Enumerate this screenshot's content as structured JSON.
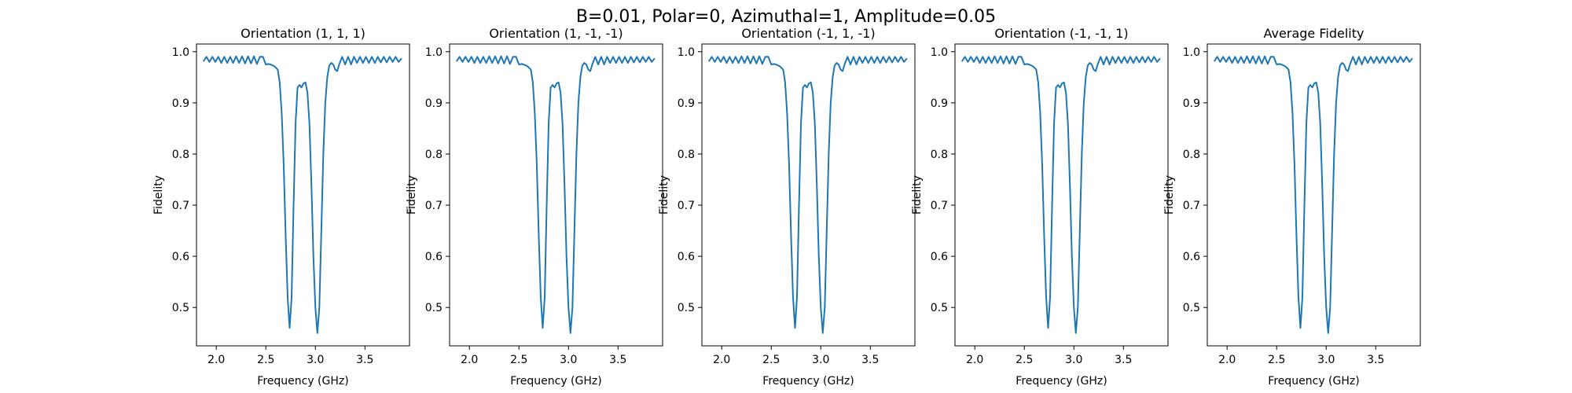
{
  "figure": {
    "suptitle": "B=0.01, Polar=0, Azimuthal=1, Amplitude=0.05"
  },
  "colors": {
    "line": "#1f77b4",
    "axes": "#000000"
  },
  "chart_data": [
    {
      "type": "line",
      "title": "Orientation (1, 1, 1)",
      "xlabel": "Frequency (GHz)",
      "ylabel": "Fidelity",
      "xlim": [
        1.8,
        3.95
      ],
      "ylim": [
        0.425,
        1.015
      ],
      "xticks": [
        "2.0",
        "2.5",
        "3.0",
        "3.5"
      ],
      "yticks": [
        "0.5",
        "0.6",
        "0.7",
        "0.8",
        "0.9",
        "1.0"
      ],
      "grid": false,
      "series": [
        {
          "x": [
            1.87,
            1.9,
            1.93,
            1.96,
            1.99,
            2.02,
            2.05,
            2.08,
            2.11,
            2.14,
            2.17,
            2.2,
            2.23,
            2.26,
            2.29,
            2.32,
            2.35,
            2.38,
            2.41,
            2.44,
            2.47,
            2.5,
            2.53,
            2.56,
            2.59,
            2.62,
            2.64,
            2.66,
            2.68,
            2.7,
            2.72,
            2.74,
            2.76,
            2.78,
            2.8,
            2.82,
            2.84,
            2.86,
            2.88,
            2.9,
            2.92,
            2.94,
            2.96,
            2.98,
            3.0,
            3.02,
            3.04,
            3.06,
            3.08,
            3.1,
            3.12,
            3.14,
            3.16,
            3.18,
            3.2,
            3.22,
            3.24,
            3.27,
            3.3,
            3.33,
            3.36,
            3.39,
            3.42,
            3.45,
            3.48,
            3.51,
            3.54,
            3.57,
            3.6,
            3.63,
            3.66,
            3.69,
            3.72,
            3.75,
            3.78,
            3.81,
            3.84,
            3.87
          ],
          "y": [
            0.981,
            0.99,
            0.98,
            0.99,
            0.98,
            0.99,
            0.978,
            0.99,
            0.978,
            0.99,
            0.978,
            0.991,
            0.978,
            0.991,
            0.977,
            0.991,
            0.977,
            0.991,
            0.976,
            0.99,
            0.99,
            0.975,
            0.976,
            0.974,
            0.971,
            0.965,
            0.94,
            0.88,
            0.78,
            0.64,
            0.52,
            0.46,
            0.52,
            0.7,
            0.86,
            0.93,
            0.935,
            0.93,
            0.938,
            0.94,
            0.92,
            0.86,
            0.74,
            0.6,
            0.5,
            0.45,
            0.5,
            0.65,
            0.8,
            0.9,
            0.95,
            0.973,
            0.978,
            0.975,
            0.965,
            0.962,
            0.975,
            0.99,
            0.975,
            0.99,
            0.975,
            0.99,
            0.978,
            0.99,
            0.978,
            0.99,
            0.978,
            0.99,
            0.978,
            0.99,
            0.979,
            0.99,
            0.979,
            0.99,
            0.98,
            0.99,
            0.98,
            0.987
          ]
        }
      ]
    },
    {
      "type": "line",
      "title": "Orientation (1, -1, -1)",
      "xlabel": "Frequency (GHz)",
      "ylabel": "Fidelity",
      "xlim": [
        1.8,
        3.95
      ],
      "ylim": [
        0.425,
        1.015
      ],
      "xticks": [
        "2.0",
        "2.5",
        "3.0",
        "3.5"
      ],
      "yticks": [
        "0.5",
        "0.6",
        "0.7",
        "0.8",
        "0.9",
        "1.0"
      ],
      "grid": false,
      "series": [
        {
          "x": [
            1.87,
            1.9,
            1.93,
            1.96,
            1.99,
            2.02,
            2.05,
            2.08,
            2.11,
            2.14,
            2.17,
            2.2,
            2.23,
            2.26,
            2.29,
            2.32,
            2.35,
            2.38,
            2.41,
            2.44,
            2.47,
            2.5,
            2.53,
            2.56,
            2.59,
            2.62,
            2.64,
            2.66,
            2.68,
            2.7,
            2.72,
            2.74,
            2.76,
            2.78,
            2.8,
            2.82,
            2.84,
            2.86,
            2.88,
            2.9,
            2.92,
            2.94,
            2.96,
            2.98,
            3.0,
            3.02,
            3.04,
            3.06,
            3.08,
            3.1,
            3.12,
            3.14,
            3.16,
            3.18,
            3.2,
            3.22,
            3.24,
            3.27,
            3.3,
            3.33,
            3.36,
            3.39,
            3.42,
            3.45,
            3.48,
            3.51,
            3.54,
            3.57,
            3.6,
            3.63,
            3.66,
            3.69,
            3.72,
            3.75,
            3.78,
            3.81,
            3.84,
            3.87
          ],
          "y": [
            0.981,
            0.99,
            0.98,
            0.99,
            0.98,
            0.99,
            0.978,
            0.99,
            0.978,
            0.99,
            0.978,
            0.991,
            0.978,
            0.991,
            0.977,
            0.991,
            0.977,
            0.991,
            0.976,
            0.99,
            0.99,
            0.975,
            0.976,
            0.974,
            0.971,
            0.965,
            0.94,
            0.88,
            0.78,
            0.64,
            0.52,
            0.46,
            0.52,
            0.7,
            0.86,
            0.93,
            0.935,
            0.93,
            0.938,
            0.94,
            0.92,
            0.86,
            0.74,
            0.6,
            0.5,
            0.45,
            0.5,
            0.65,
            0.8,
            0.9,
            0.95,
            0.973,
            0.978,
            0.975,
            0.965,
            0.962,
            0.975,
            0.99,
            0.975,
            0.99,
            0.975,
            0.99,
            0.978,
            0.99,
            0.978,
            0.99,
            0.978,
            0.99,
            0.978,
            0.99,
            0.979,
            0.99,
            0.979,
            0.99,
            0.98,
            0.99,
            0.98,
            0.987
          ]
        }
      ]
    },
    {
      "type": "line",
      "title": "Orientation (-1, 1, -1)",
      "xlabel": "Frequency (GHz)",
      "ylabel": "Fidelity",
      "xlim": [
        1.8,
        3.95
      ],
      "ylim": [
        0.425,
        1.015
      ],
      "xticks": [
        "2.0",
        "2.5",
        "3.0",
        "3.5"
      ],
      "yticks": [
        "0.5",
        "0.6",
        "0.7",
        "0.8",
        "0.9",
        "1.0"
      ],
      "grid": false,
      "series": [
        {
          "x": [
            1.87,
            1.9,
            1.93,
            1.96,
            1.99,
            2.02,
            2.05,
            2.08,
            2.11,
            2.14,
            2.17,
            2.2,
            2.23,
            2.26,
            2.29,
            2.32,
            2.35,
            2.38,
            2.41,
            2.44,
            2.47,
            2.5,
            2.53,
            2.56,
            2.59,
            2.62,
            2.64,
            2.66,
            2.68,
            2.7,
            2.72,
            2.74,
            2.76,
            2.78,
            2.8,
            2.82,
            2.84,
            2.86,
            2.88,
            2.9,
            2.92,
            2.94,
            2.96,
            2.98,
            3.0,
            3.02,
            3.04,
            3.06,
            3.08,
            3.1,
            3.12,
            3.14,
            3.16,
            3.18,
            3.2,
            3.22,
            3.24,
            3.27,
            3.3,
            3.33,
            3.36,
            3.39,
            3.42,
            3.45,
            3.48,
            3.51,
            3.54,
            3.57,
            3.6,
            3.63,
            3.66,
            3.69,
            3.72,
            3.75,
            3.78,
            3.81,
            3.84,
            3.87
          ],
          "y": [
            0.981,
            0.99,
            0.98,
            0.99,
            0.98,
            0.99,
            0.978,
            0.99,
            0.978,
            0.99,
            0.978,
            0.991,
            0.978,
            0.991,
            0.977,
            0.991,
            0.977,
            0.991,
            0.976,
            0.99,
            0.99,
            0.975,
            0.976,
            0.974,
            0.971,
            0.965,
            0.94,
            0.88,
            0.78,
            0.64,
            0.52,
            0.46,
            0.52,
            0.7,
            0.86,
            0.93,
            0.935,
            0.93,
            0.938,
            0.94,
            0.92,
            0.86,
            0.74,
            0.6,
            0.5,
            0.45,
            0.5,
            0.65,
            0.8,
            0.9,
            0.95,
            0.973,
            0.978,
            0.975,
            0.965,
            0.962,
            0.975,
            0.99,
            0.975,
            0.99,
            0.975,
            0.99,
            0.978,
            0.99,
            0.978,
            0.99,
            0.978,
            0.99,
            0.978,
            0.99,
            0.979,
            0.99,
            0.979,
            0.99,
            0.98,
            0.99,
            0.98,
            0.987
          ]
        }
      ]
    },
    {
      "type": "line",
      "title": "Orientation (-1, -1, 1)",
      "xlabel": "Frequency (GHz)",
      "ylabel": "Fidelity",
      "xlim": [
        1.8,
        3.95
      ],
      "ylim": [
        0.425,
        1.015
      ],
      "xticks": [
        "2.0",
        "2.5",
        "3.0",
        "3.5"
      ],
      "yticks": [
        "0.5",
        "0.6",
        "0.7",
        "0.8",
        "0.9",
        "1.0"
      ],
      "grid": false,
      "series": [
        {
          "x": [
            1.87,
            1.9,
            1.93,
            1.96,
            1.99,
            2.02,
            2.05,
            2.08,
            2.11,
            2.14,
            2.17,
            2.2,
            2.23,
            2.26,
            2.29,
            2.32,
            2.35,
            2.38,
            2.41,
            2.44,
            2.47,
            2.5,
            2.53,
            2.56,
            2.59,
            2.62,
            2.64,
            2.66,
            2.68,
            2.7,
            2.72,
            2.74,
            2.76,
            2.78,
            2.8,
            2.82,
            2.84,
            2.86,
            2.88,
            2.9,
            2.92,
            2.94,
            2.96,
            2.98,
            3.0,
            3.02,
            3.04,
            3.06,
            3.08,
            3.1,
            3.12,
            3.14,
            3.16,
            3.18,
            3.2,
            3.22,
            3.24,
            3.27,
            3.3,
            3.33,
            3.36,
            3.39,
            3.42,
            3.45,
            3.48,
            3.51,
            3.54,
            3.57,
            3.6,
            3.63,
            3.66,
            3.69,
            3.72,
            3.75,
            3.78,
            3.81,
            3.84,
            3.87
          ],
          "y": [
            0.981,
            0.99,
            0.98,
            0.99,
            0.98,
            0.99,
            0.978,
            0.99,
            0.978,
            0.99,
            0.978,
            0.991,
            0.978,
            0.991,
            0.977,
            0.991,
            0.977,
            0.991,
            0.976,
            0.99,
            0.99,
            0.975,
            0.976,
            0.974,
            0.971,
            0.965,
            0.94,
            0.88,
            0.78,
            0.64,
            0.52,
            0.46,
            0.52,
            0.7,
            0.86,
            0.93,
            0.935,
            0.93,
            0.938,
            0.94,
            0.92,
            0.86,
            0.74,
            0.6,
            0.5,
            0.45,
            0.5,
            0.65,
            0.8,
            0.9,
            0.95,
            0.973,
            0.978,
            0.975,
            0.965,
            0.962,
            0.975,
            0.99,
            0.975,
            0.99,
            0.975,
            0.99,
            0.978,
            0.99,
            0.978,
            0.99,
            0.978,
            0.99,
            0.978,
            0.99,
            0.979,
            0.99,
            0.979,
            0.99,
            0.98,
            0.99,
            0.98,
            0.987
          ]
        }
      ]
    },
    {
      "type": "line",
      "title": "Average Fidelity",
      "xlabel": "Frequency (GHz)",
      "ylabel": "Fidelity",
      "xlim": [
        1.8,
        3.95
      ],
      "ylim": [
        0.425,
        1.015
      ],
      "xticks": [
        "2.0",
        "2.5",
        "3.0",
        "3.5"
      ],
      "yticks": [
        "0.5",
        "0.6",
        "0.7",
        "0.8",
        "0.9",
        "1.0"
      ],
      "grid": false,
      "series": [
        {
          "x": [
            1.87,
            1.9,
            1.93,
            1.96,
            1.99,
            2.02,
            2.05,
            2.08,
            2.11,
            2.14,
            2.17,
            2.2,
            2.23,
            2.26,
            2.29,
            2.32,
            2.35,
            2.38,
            2.41,
            2.44,
            2.47,
            2.5,
            2.53,
            2.56,
            2.59,
            2.62,
            2.64,
            2.66,
            2.68,
            2.7,
            2.72,
            2.74,
            2.76,
            2.78,
            2.8,
            2.82,
            2.84,
            2.86,
            2.88,
            2.9,
            2.92,
            2.94,
            2.96,
            2.98,
            3.0,
            3.02,
            3.04,
            3.06,
            3.08,
            3.1,
            3.12,
            3.14,
            3.16,
            3.18,
            3.2,
            3.22,
            3.24,
            3.27,
            3.3,
            3.33,
            3.36,
            3.39,
            3.42,
            3.45,
            3.48,
            3.51,
            3.54,
            3.57,
            3.6,
            3.63,
            3.66,
            3.69,
            3.72,
            3.75,
            3.78,
            3.81,
            3.84,
            3.87
          ],
          "y": [
            0.981,
            0.99,
            0.98,
            0.99,
            0.98,
            0.99,
            0.978,
            0.99,
            0.978,
            0.99,
            0.978,
            0.991,
            0.978,
            0.991,
            0.977,
            0.991,
            0.977,
            0.991,
            0.976,
            0.99,
            0.99,
            0.975,
            0.976,
            0.974,
            0.971,
            0.965,
            0.94,
            0.88,
            0.78,
            0.64,
            0.52,
            0.46,
            0.52,
            0.7,
            0.86,
            0.93,
            0.935,
            0.93,
            0.938,
            0.94,
            0.92,
            0.86,
            0.74,
            0.6,
            0.5,
            0.45,
            0.5,
            0.65,
            0.8,
            0.9,
            0.95,
            0.973,
            0.978,
            0.975,
            0.965,
            0.962,
            0.975,
            0.99,
            0.975,
            0.99,
            0.975,
            0.99,
            0.978,
            0.99,
            0.978,
            0.99,
            0.978,
            0.99,
            0.978,
            0.99,
            0.979,
            0.99,
            0.979,
            0.99,
            0.98,
            0.99,
            0.98,
            0.987
          ]
        }
      ]
    }
  ]
}
